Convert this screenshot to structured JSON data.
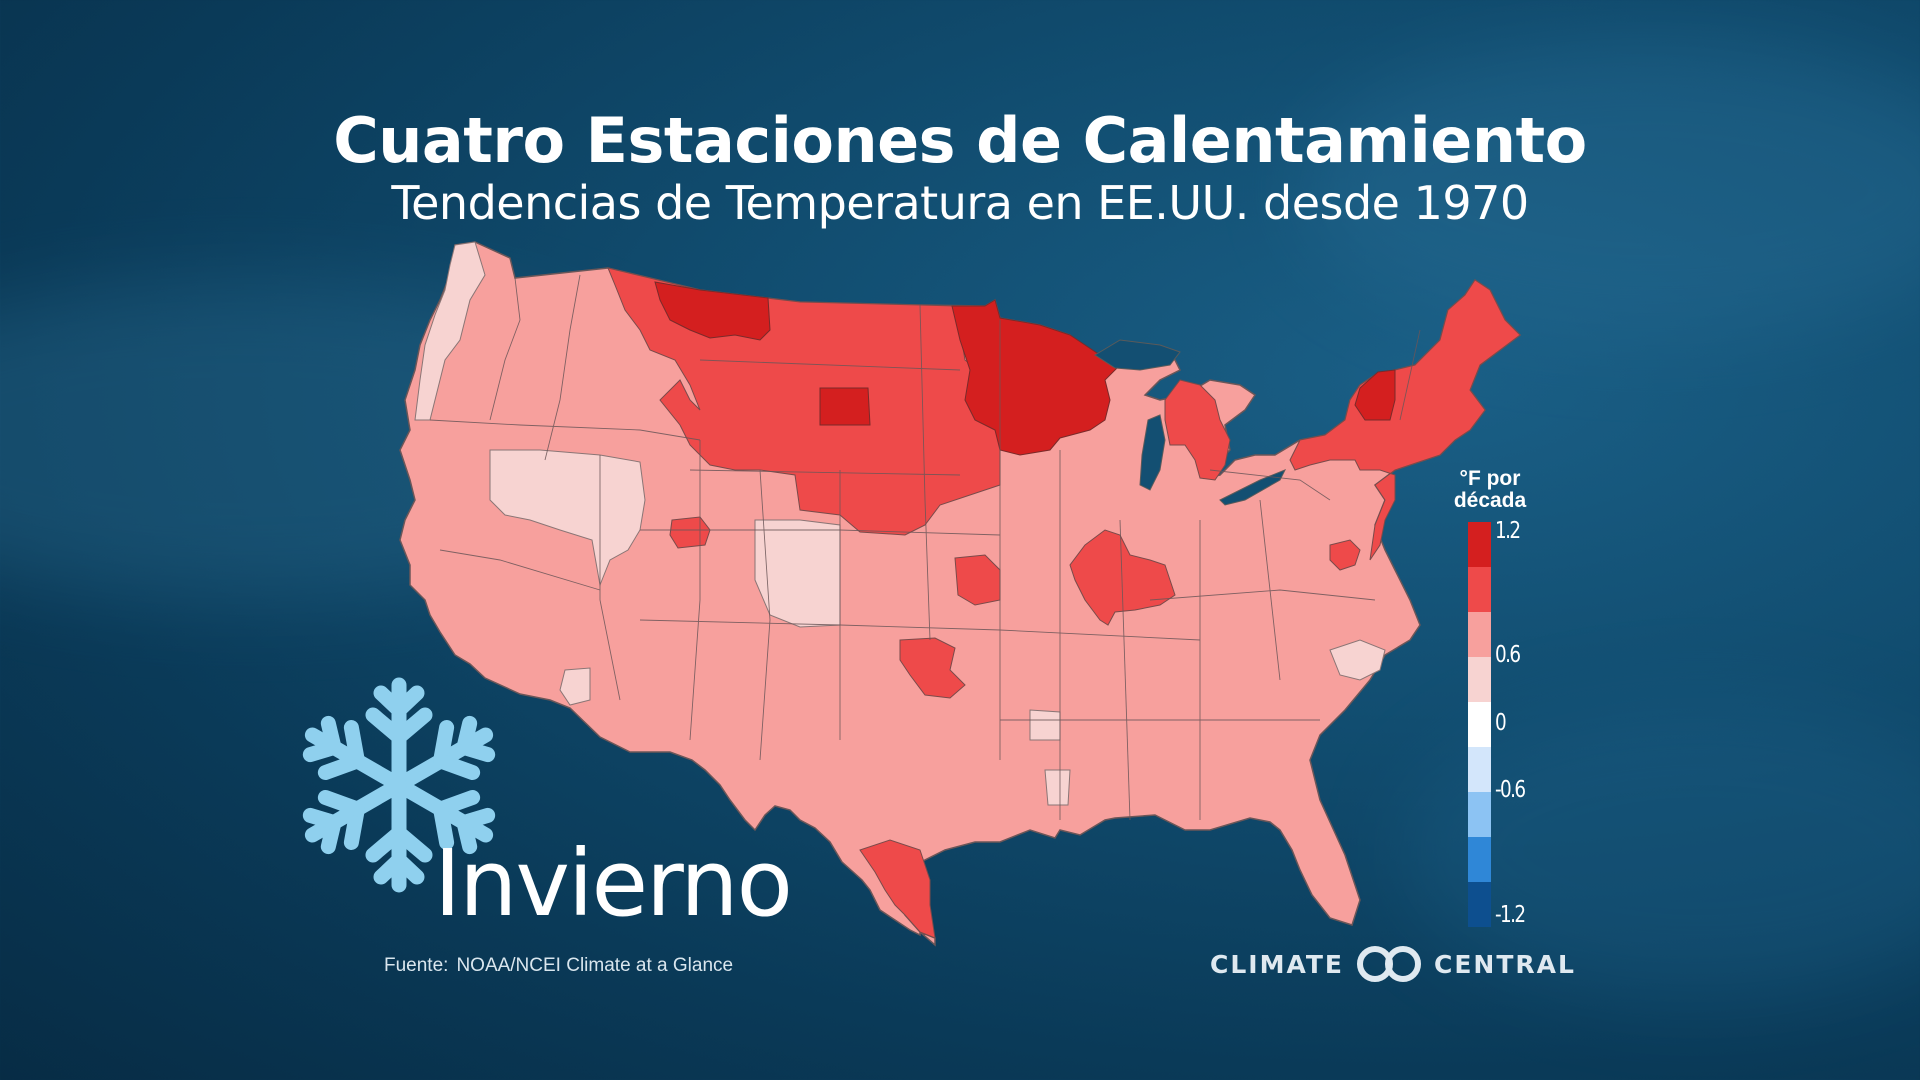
{
  "title": "Cuatro Estaciones de Calentamiento",
  "subtitle": "Tendencias de Temperatura en EE.UU. desde 1970",
  "season": {
    "label": "Invierno",
    "icon": "snowflake-icon"
  },
  "source": {
    "label": "Fuente:",
    "value": "NOAA/NCEI Climate at a Glance"
  },
  "legend": {
    "title_line1": "°F por",
    "title_line2": "década",
    "ticks": [
      "1.2",
      "0.6",
      "0",
      "-0.6",
      "-1.2"
    ],
    "colors": [
      "#d41f1f",
      "#ee4a4a",
      "#f7a09d",
      "#f7d3d1",
      "#ffffff",
      "#d3e6fb",
      "#8cc3f3",
      "#2f87d7",
      "#0d4f8f"
    ]
  },
  "map": {
    "region": "Contiguous United States (climate divisions)",
    "regions": [
      {
        "name": "Montana Norte",
        "class": "1.2"
      },
      {
        "name": "Dakota del Norte Este / Minnesota",
        "class": "1.2"
      },
      {
        "name": "Wisconsin Norte",
        "class": "1.2"
      },
      {
        "name": "Dakota del Sur Oeste",
        "class": "1.2"
      },
      {
        "name": "Nueva York Norte (Adirondacks)",
        "class": "1.2"
      },
      {
        "name": "Montana / Wyoming Norte",
        "class": "0.9"
      },
      {
        "name": "Nebraska / Iowa",
        "class": "0.9"
      },
      {
        "name": "Michigan Norte",
        "class": "0.9"
      },
      {
        "name": "Illinois / Indiana",
        "class": "0.9"
      },
      {
        "name": "Nueva Inglaterra",
        "class": "0.9"
      },
      {
        "name": "Texas Sur",
        "class": "0.9"
      },
      {
        "name": "Oklahoma Este",
        "class": "0.9"
      },
      {
        "name": "Utah Este",
        "class": "0.9"
      },
      {
        "name": "Nevada / Utah Oeste",
        "class": "0.3"
      },
      {
        "name": "Colorado Este",
        "class": "0.3"
      },
      {
        "name": "Washington Oeste",
        "class": "0.3"
      },
      {
        "name": "Carolina del Sur Costa",
        "class": "0.3"
      },
      {
        "name": "Mississippi / Luisiana",
        "class": "0.3"
      },
      {
        "name": "Resto del país",
        "class": "0.6"
      }
    ]
  },
  "logo": {
    "left": "CLIMATE",
    "right": "CENTRAL",
    "icon": "climate-central-logo-icon"
  }
}
